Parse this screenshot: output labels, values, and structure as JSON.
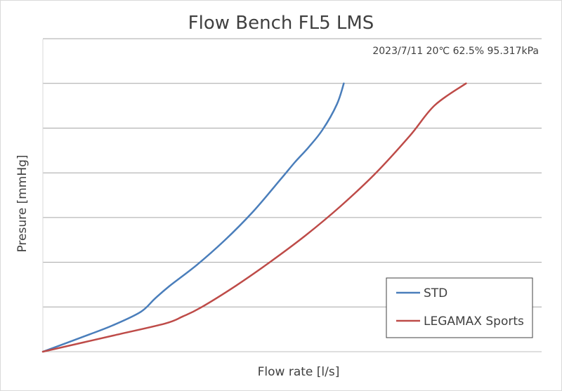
{
  "chart_data": {
    "type": "line",
    "title": "Flow Bench FL5 LMS",
    "annotation": "2023/7/11 20℃ 62.5% 95.317kPa",
    "xlabel": "Flow rate [l/s]",
    "ylabel": "Presure [mmHg]",
    "xlim": [
      0,
      100
    ],
    "ylim": [
      0,
      7
    ],
    "y_gridlines": [
      1,
      2,
      3,
      4,
      5,
      6,
      7
    ],
    "grid": true,
    "legend_position": "bottom-right",
    "series": [
      {
        "name": "STD",
        "color": "#4a7ebb",
        "x": [
          0,
          8.5,
          14.1,
          19.7,
          22.5,
          25.4,
          31.0,
          36.6,
          42.3,
          47.9,
          50.7,
          53.5,
          56.3,
          59.2,
          60.6
        ],
        "y": [
          0,
          0.35,
          0.59,
          0.89,
          1.18,
          1.46,
          1.94,
          2.49,
          3.13,
          3.86,
          4.23,
          4.57,
          4.96,
          5.53,
          6.0
        ]
      },
      {
        "name": "LEGAMAX Sports",
        "color": "#be4b48",
        "x": [
          0,
          14.1,
          24.6,
          28.2,
          31.7,
          38.8,
          45.8,
          52.9,
          59.9,
          66.9,
          73.9,
          78.9,
          85.2
        ],
        "y": [
          0,
          0.36,
          0.63,
          0.79,
          0.98,
          1.47,
          2.01,
          2.6,
          3.25,
          3.98,
          4.83,
          5.51,
          6.0
        ]
      }
    ]
  }
}
